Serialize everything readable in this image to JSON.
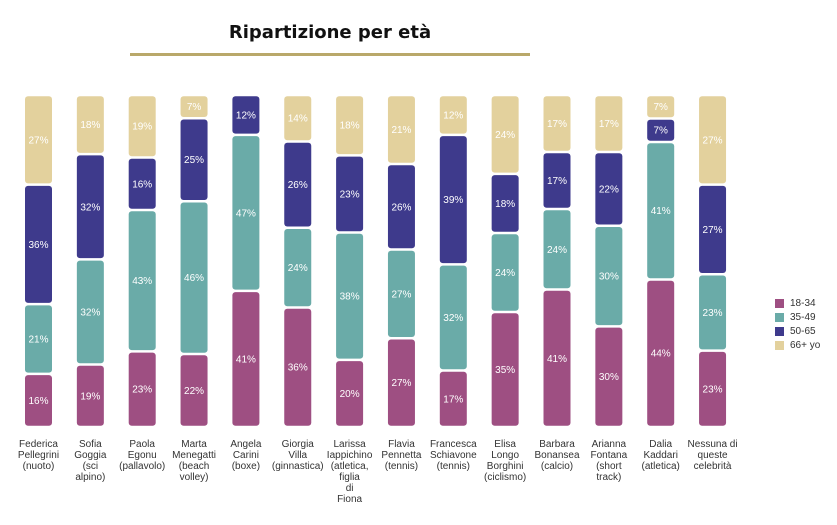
{
  "title": "Ripartizione per età",
  "chart_data": {
    "type": "bar",
    "stacked": true,
    "percent": true,
    "title": "Ripartizione per età",
    "categories": [
      "Federica Pellegrini (nuoto)",
      "Sofia Goggia (sci alpino)",
      "Paola Egonu (pallavolo)",
      "Marta Menegatti (beach volley)",
      "Angela Carini (boxe)",
      "Giorgia Villa (ginnastica)",
      "Larissa Iappichino (atletica, figlia di Fiona",
      "Flavia Pennetta (tennis)",
      "Francesca Schiavone (tennis)",
      "Elisa Longo Borghini (ciclismo)",
      "Barbara Bonansea (calcio)",
      "Arianna Fontana (short track)",
      "Dalia Kaddari (atletica)",
      "Nessuna di queste celebrità"
    ],
    "label_lines": [
      [
        "Federica",
        "Pellegrini",
        "(nuoto)"
      ],
      [
        "Sofia",
        "Goggia",
        "(sci",
        "alpino)"
      ],
      [
        "Paola",
        "Egonu",
        "(pallavolo)"
      ],
      [
        "Marta",
        "Menegatti",
        "(beach",
        "volley)"
      ],
      [
        "Angela",
        "Carini",
        "(boxe)"
      ],
      [
        "Giorgia",
        "Villa",
        "(ginnastica)"
      ],
      [
        "Larissa",
        "Iappichino",
        "(atletica,",
        "figlia",
        "di",
        "Fiona"
      ],
      [
        "Flavia",
        "Pennetta",
        "(tennis)"
      ],
      [
        "Francesca",
        "Schiavone",
        "(tennis)"
      ],
      [
        "Elisa",
        "Longo",
        "Borghini",
        "(ciclismo)"
      ],
      [
        "Barbara",
        "Bonansea",
        "(calcio)"
      ],
      [
        "Arianna",
        "Fontana",
        "(short",
        "track)"
      ],
      [
        "Dalia",
        "Kaddari",
        "(atletica)"
      ],
      [
        "Nessuna di",
        "queste",
        "celebrità"
      ]
    ],
    "series": [
      {
        "name": "18-34",
        "color": "#9e4f82",
        "values": [
          16,
          19,
          23,
          22,
          41,
          36,
          20,
          27,
          17,
          35,
          41,
          30,
          44,
          23
        ]
      },
      {
        "name": "35-49",
        "color": "#6aaba8",
        "values": [
          21,
          32,
          43,
          46,
          47,
          24,
          38,
          27,
          32,
          24,
          24,
          30,
          41,
          23
        ]
      },
      {
        "name": "50-65",
        "color": "#3e3a8c",
        "values": [
          36,
          32,
          16,
          25,
          12,
          26,
          23,
          26,
          39,
          18,
          17,
          22,
          7,
          27
        ]
      },
      {
        "name": "66+ yo",
        "color": "#e3d19d",
        "values": [
          27,
          18,
          19,
          7,
          0,
          14,
          18,
          21,
          12,
          24,
          17,
          17,
          7,
          27
        ]
      }
    ],
    "value_labels": [
      [
        "16%",
        "19%",
        "23%",
        "22%",
        "41%",
        "36%",
        "20%",
        "27%",
        "17%",
        "35%",
        "41%",
        "30%",
        "44%",
        "23%"
      ],
      [
        "21%",
        "32%",
        "43%",
        "46%",
        "47%",
        "24%",
        "38%",
        "27%",
        "32%",
        "24%",
        "24%",
        "30%",
        "41%",
        "23%"
      ],
      [
        "36%",
        "32%",
        "16%",
        "25%",
        "12%",
        "26%",
        "23%",
        "26%",
        "39%",
        "18%",
        "17%",
        "22%",
        "7%",
        "27%"
      ],
      [
        "27%",
        "18%",
        "19%",
        "7%",
        "",
        "14%",
        "18%",
        "21%",
        "12%",
        "24%",
        "17%",
        "17%",
        "7%",
        "27%"
      ]
    ],
    "ylim": [
      0,
      100
    ],
    "legend_position": "right"
  }
}
